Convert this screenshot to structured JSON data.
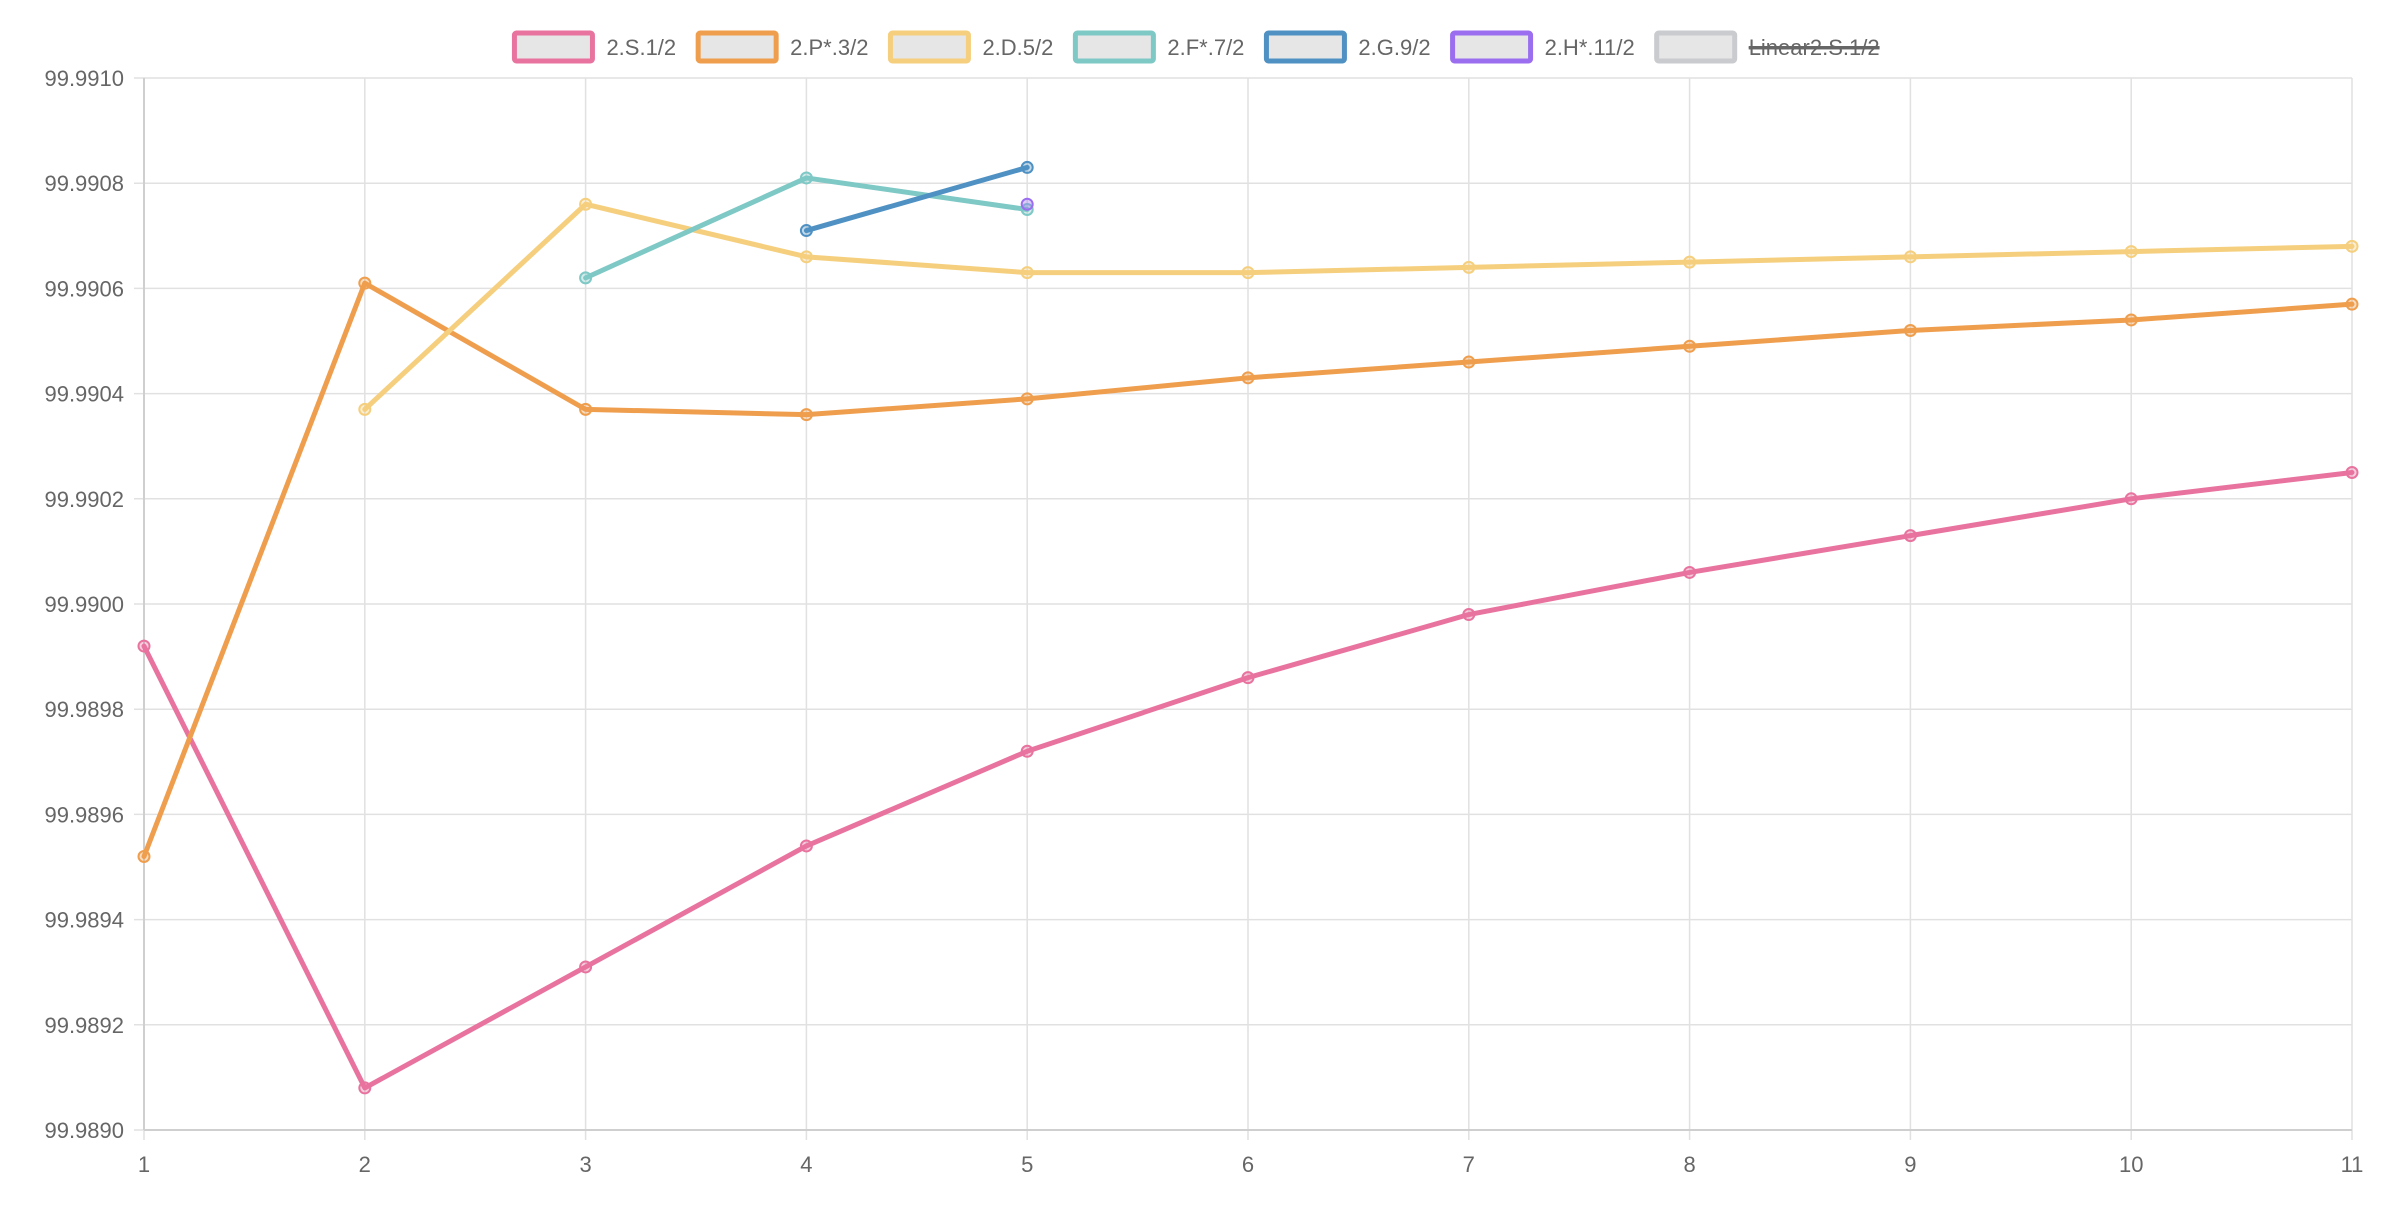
{
  "chart_data": {
    "type": "line",
    "title": "",
    "xlabel": "",
    "ylabel": "",
    "x_categories": [
      "1",
      "2",
      "3",
      "4",
      "5",
      "6",
      "7",
      "8",
      "9",
      "10",
      "11"
    ],
    "ylim": [
      99.989,
      99.991
    ],
    "y_ticks": [
      "99.9890",
      "99.9892",
      "99.9894",
      "99.9896",
      "99.9898",
      "99.9900",
      "99.9902",
      "99.9904",
      "99.9906",
      "99.9908",
      "99.9910"
    ],
    "grid": true,
    "legend_position": "top-center",
    "series": [
      {
        "name": "2.S.1/2",
        "color": "#e8739f",
        "hidden": false,
        "x": [
          1,
          2,
          3,
          4,
          5,
          6,
          7,
          8,
          9,
          10,
          11
        ],
        "values": [
          99.98992,
          99.98908,
          99.98931,
          99.98954,
          99.98972,
          99.98986,
          99.98998,
          99.99006,
          99.99013,
          99.9902,
          99.99025
        ]
      },
      {
        "name": "2.P*.3/2",
        "color": "#ef9e4e",
        "hidden": false,
        "x": [
          1,
          2,
          3,
          4,
          5,
          6,
          7,
          8,
          9,
          10,
          11
        ],
        "values": [
          99.98952,
          99.99061,
          99.99037,
          99.99036,
          99.99039,
          99.99043,
          99.99046,
          99.99049,
          99.99052,
          99.99054,
          99.99057
        ]
      },
      {
        "name": "2.D.5/2",
        "color": "#f5cf7d",
        "hidden": false,
        "x": [
          2,
          3,
          4,
          5,
          6,
          7,
          8,
          9,
          10,
          11
        ],
        "values": [
          99.99037,
          99.99076,
          99.99066,
          99.99063,
          99.99063,
          99.99064,
          99.99065,
          99.99066,
          99.99067,
          99.99068
        ]
      },
      {
        "name": "2.F*.7/2",
        "color": "#7ec8c6",
        "hidden": false,
        "x": [
          3,
          4,
          5
        ],
        "values": [
          99.99062,
          99.99081,
          99.99075
        ]
      },
      {
        "name": "2.G.9/2",
        "color": "#4f91c3",
        "hidden": false,
        "x": [
          4,
          5
        ],
        "values": [
          99.99071,
          99.99083
        ]
      },
      {
        "name": "2.H*.11/2",
        "color": "#9b6ef0",
        "hidden": false,
        "x": [
          5
        ],
        "values": [
          99.99076
        ]
      },
      {
        "name": "Linear2.S.1/2",
        "color": "#c9cbcf",
        "hidden": true,
        "x": [],
        "values": []
      }
    ]
  }
}
